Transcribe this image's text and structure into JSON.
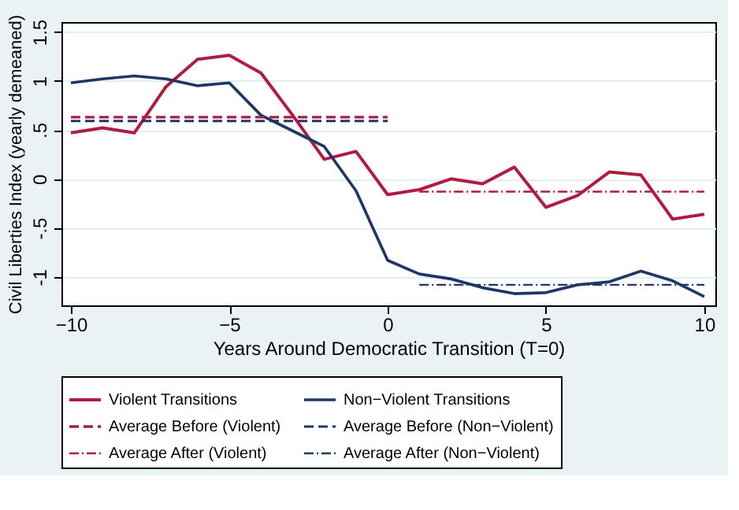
{
  "chart_data": {
    "type": "line",
    "xlabel": "Years Around Democratic Transition (T=0)",
    "ylabel": "Civil Liberties Index (yearly demeaned)",
    "x": [
      -10,
      -9,
      -8,
      -7,
      -6,
      -5,
      -4,
      -3,
      -2,
      -1,
      0,
      1,
      2,
      3,
      4,
      5,
      6,
      7,
      8,
      9,
      10
    ],
    "series": [
      {
        "name": "Violent Transitions",
        "color": "#b01c3f",
        "line_style": "solid",
        "values": [
          0.47,
          0.52,
          0.47,
          0.94,
          1.22,
          1.26,
          1.08,
          0.65,
          0.2,
          0.28,
          -0.16,
          -0.11,
          0,
          -0.05,
          0.12,
          -0.29,
          -0.17,
          0.07,
          0.04,
          -0.41,
          -0.36
        ]
      },
      {
        "name": "Non−Violent Transitions",
        "color": "#1f3766",
        "line_style": "solid",
        "values": [
          0.98,
          1.02,
          1.05,
          1.02,
          0.95,
          0.98,
          0.65,
          0.49,
          0.33,
          -0.12,
          -0.83,
          -0.97,
          -1.02,
          -1.11,
          -1.17,
          -1.16,
          -1.08,
          -1.05,
          -0.94,
          -1.04,
          -1.2
        ]
      },
      {
        "name": "Average Before (Violent)",
        "color": "#b01c3f",
        "line_style": "dashed",
        "x": [
          -10,
          0
        ],
        "values": [
          0.63,
          0.63
        ]
      },
      {
        "name": "Average Before (Non−Violent)",
        "color": "#1f3766",
        "line_style": "dashed",
        "x": [
          -10,
          0
        ],
        "values": [
          0.59,
          0.59
        ]
      },
      {
        "name": "Average After (Violent)",
        "color": "#b01c3f",
        "line_style": "dashdot",
        "x": [
          1,
          10
        ],
        "values": [
          -0.13,
          -0.13
        ]
      },
      {
        "name": "Average After (Non−Violent)",
        "color": "#1f3766",
        "line_style": "dashdot",
        "x": [
          1,
          10
        ],
        "values": [
          -1.08,
          -1.08
        ]
      }
    ],
    "xlim": [
      -10.3,
      10.35
    ],
    "xticks": [
      -10,
      -5,
      0,
      5,
      10
    ],
    "ylim": [
      -1.29,
      1.6
    ],
    "yticks": [
      {
        "value": -1,
        "label": "-1"
      },
      {
        "value": -0.5,
        "label": "-.5"
      },
      0,
      {
        "value": 0.5,
        "label": ".5"
      },
      1,
      1.5
    ],
    "grid": "y",
    "legend": "bottom"
  }
}
